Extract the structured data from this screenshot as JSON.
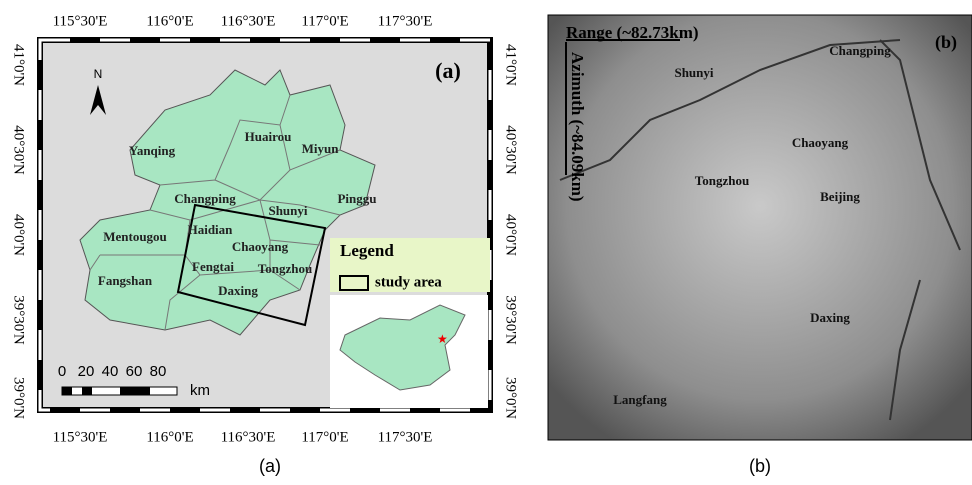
{
  "panel_a": {
    "label": "(a)",
    "north": "N",
    "x_ticks": [
      "115°30'E",
      "116°0'E",
      "116°30'E",
      "117°0'E",
      "117°30'E"
    ],
    "y_ticks": [
      "41°0'N",
      "40°30'N",
      "40°0'N",
      "39°30'N",
      "39°0'N"
    ],
    "districts": [
      "Yanqing",
      "Huairou",
      "Miyun",
      "Changping",
      "Shunyi",
      "Pinggu",
      "Mentougou",
      "Haidian",
      "Chaoyang",
      "Fengtai",
      "Tongzhou",
      "Fangshan",
      "Daxing"
    ],
    "legend_title": "Legend",
    "legend_item": "study area",
    "scale_labels": [
      "0",
      "20",
      "40",
      "60",
      "80"
    ],
    "scale_unit": "km",
    "caption": "(a)"
  },
  "panel_b": {
    "label": "(b)",
    "range": "Range (~82.73km)",
    "azimuth": "Azimuth (~84.09km)",
    "places": [
      "Shunyi",
      "Changping",
      "Chaoyang",
      "Tongzhou",
      "Beijing",
      "Daxing",
      "Langfang"
    ],
    "caption": "(b)"
  }
}
